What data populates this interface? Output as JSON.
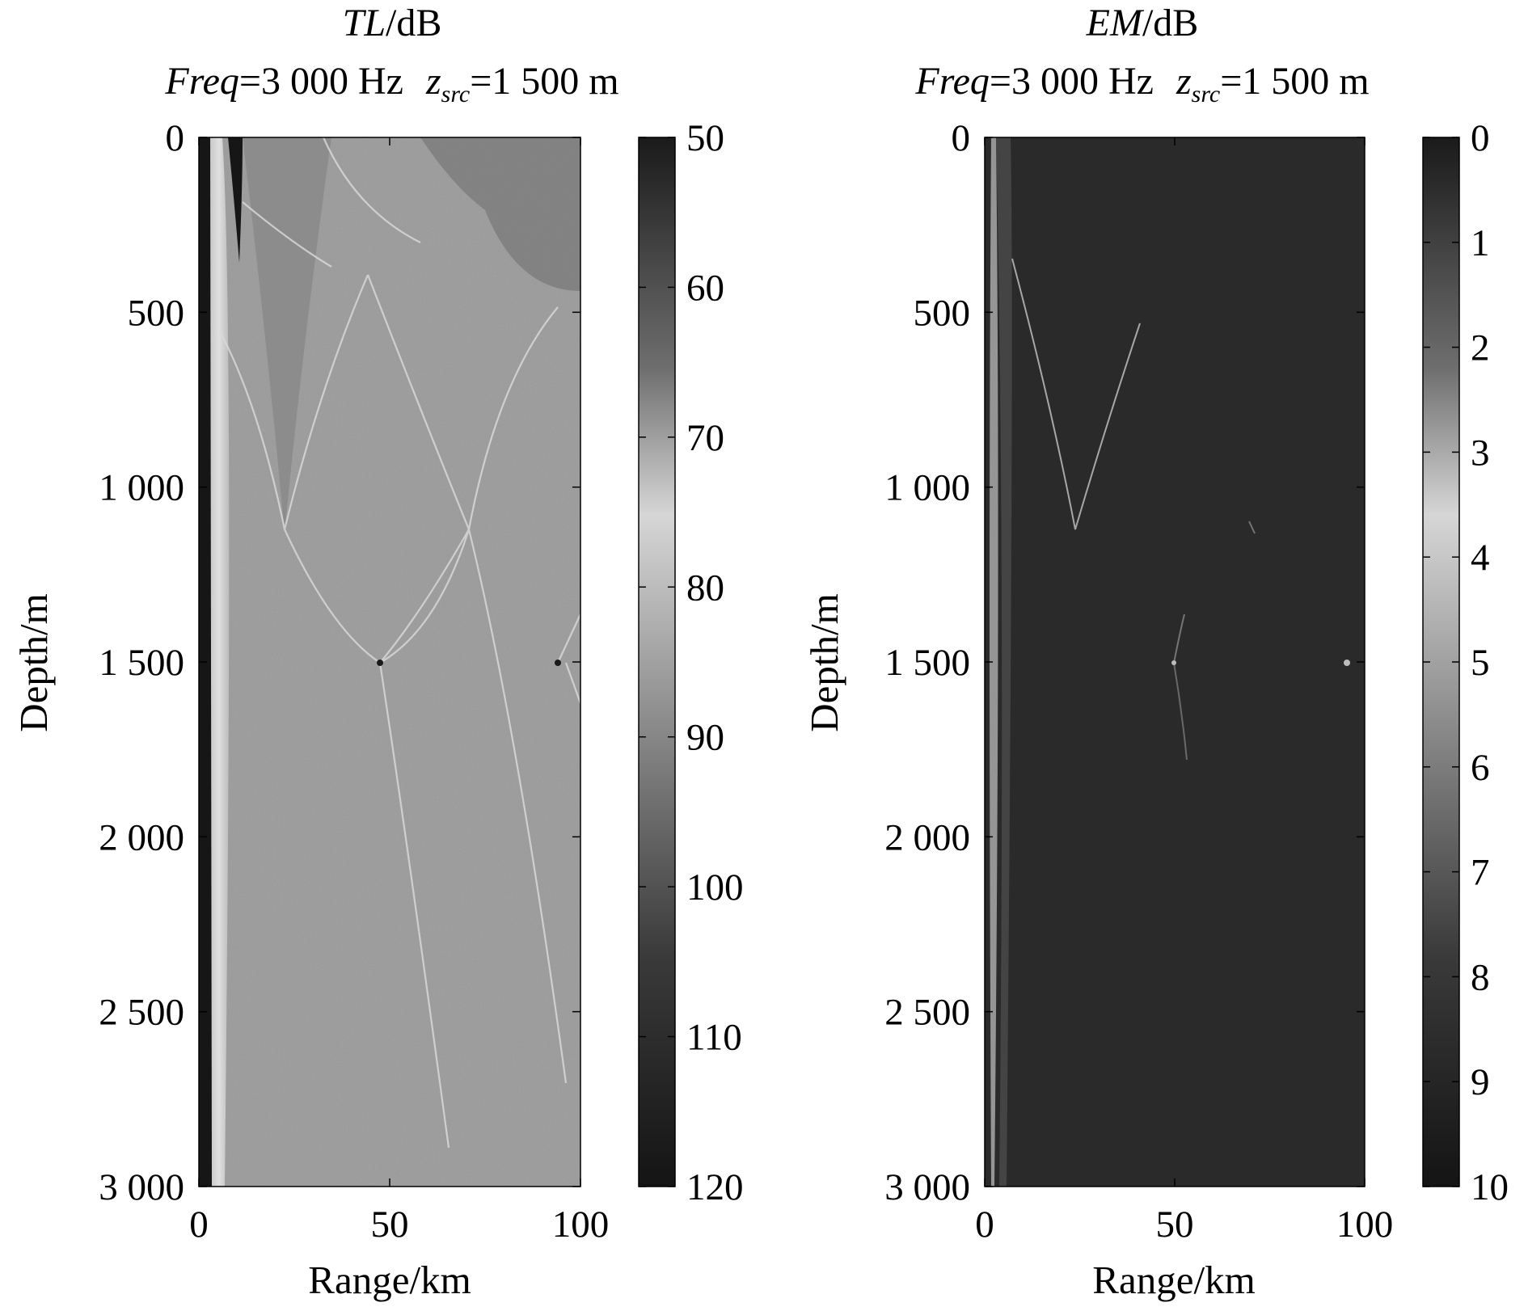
{
  "chart_data": [
    {
      "type": "heatmap",
      "title_var": "TL",
      "title_unit": "/dB",
      "subtitle": {
        "freq_var": "Freq",
        "freq_text": "=3 000 Hz",
        "src_var": "z",
        "src_sub": "src",
        "src_text": "=1 500 m"
      },
      "xlabel": "Range/km",
      "ylabel": "Depth/m",
      "xlim": [
        0,
        100
      ],
      "ylim": [
        0,
        3000
      ],
      "y_reversed": true,
      "x_ticks": [
        "0",
        "50",
        "100"
      ],
      "x_tick_values": [
        0,
        50,
        100
      ],
      "y_ticks": [
        "0",
        "500",
        "1 000",
        "1 500",
        "2 000",
        "2 500",
        "3 000"
      ],
      "y_tick_values": [
        0,
        500,
        1000,
        1500,
        2000,
        2500,
        3000
      ],
      "colorbar": {
        "range": [
          50,
          120
        ],
        "reversed": true,
        "colormap": "gray",
        "ticks": [
          "50",
          "60",
          "70",
          "80",
          "90",
          "100",
          "110",
          "120"
        ],
        "tick_values": [
          50,
          60,
          70,
          80,
          90,
          100,
          110,
          120
        ]
      },
      "background_value": 92,
      "features": {
        "near_source_value": 80,
        "shadow_value": 120,
        "caustic_vertices_km": [
          [
            22,
            1130
          ],
          [
            70,
            1130
          ]
        ],
        "source_images_km": [
          [
            48,
            1500
          ],
          [
            96,
            1500
          ]
        ]
      }
    },
    {
      "type": "heatmap",
      "title_var": "EM",
      "title_unit": "/dB",
      "subtitle": {
        "freq_var": "Freq",
        "freq_text": "=3 000 Hz",
        "src_var": "z",
        "src_sub": "src",
        "src_text": "=1 500 m"
      },
      "xlabel": "Range/km",
      "ylabel": "Depth/m",
      "xlim": [
        0,
        100
      ],
      "ylim": [
        0,
        3000
      ],
      "y_reversed": true,
      "x_ticks": [
        "0",
        "50",
        "100"
      ],
      "x_tick_values": [
        0,
        50,
        100
      ],
      "y_ticks": [
        "0",
        "500",
        "1 000",
        "1 500",
        "2 000",
        "2 500",
        "3 000"
      ],
      "y_tick_values": [
        0,
        500,
        1000,
        1500,
        2000,
        2500,
        3000
      ],
      "colorbar": {
        "range": [
          0,
          10
        ],
        "reversed": true,
        "colormap": "gray",
        "ticks": [
          "0",
          "1",
          "2",
          "3",
          "4",
          "5",
          "6",
          "7",
          "8",
          "9",
          "10"
        ],
        "tick_values": [
          0,
          1,
          2,
          3,
          4,
          5,
          6,
          7,
          8,
          9,
          10
        ]
      },
      "background_value": 0.2,
      "features": {
        "caustic_vertices_km": [
          [
            24,
            1130
          ],
          [
            70,
            1130
          ]
        ],
        "source_images_km": [
          [
            48,
            1500
          ],
          [
            97,
            1500
          ]
        ]
      }
    }
  ]
}
